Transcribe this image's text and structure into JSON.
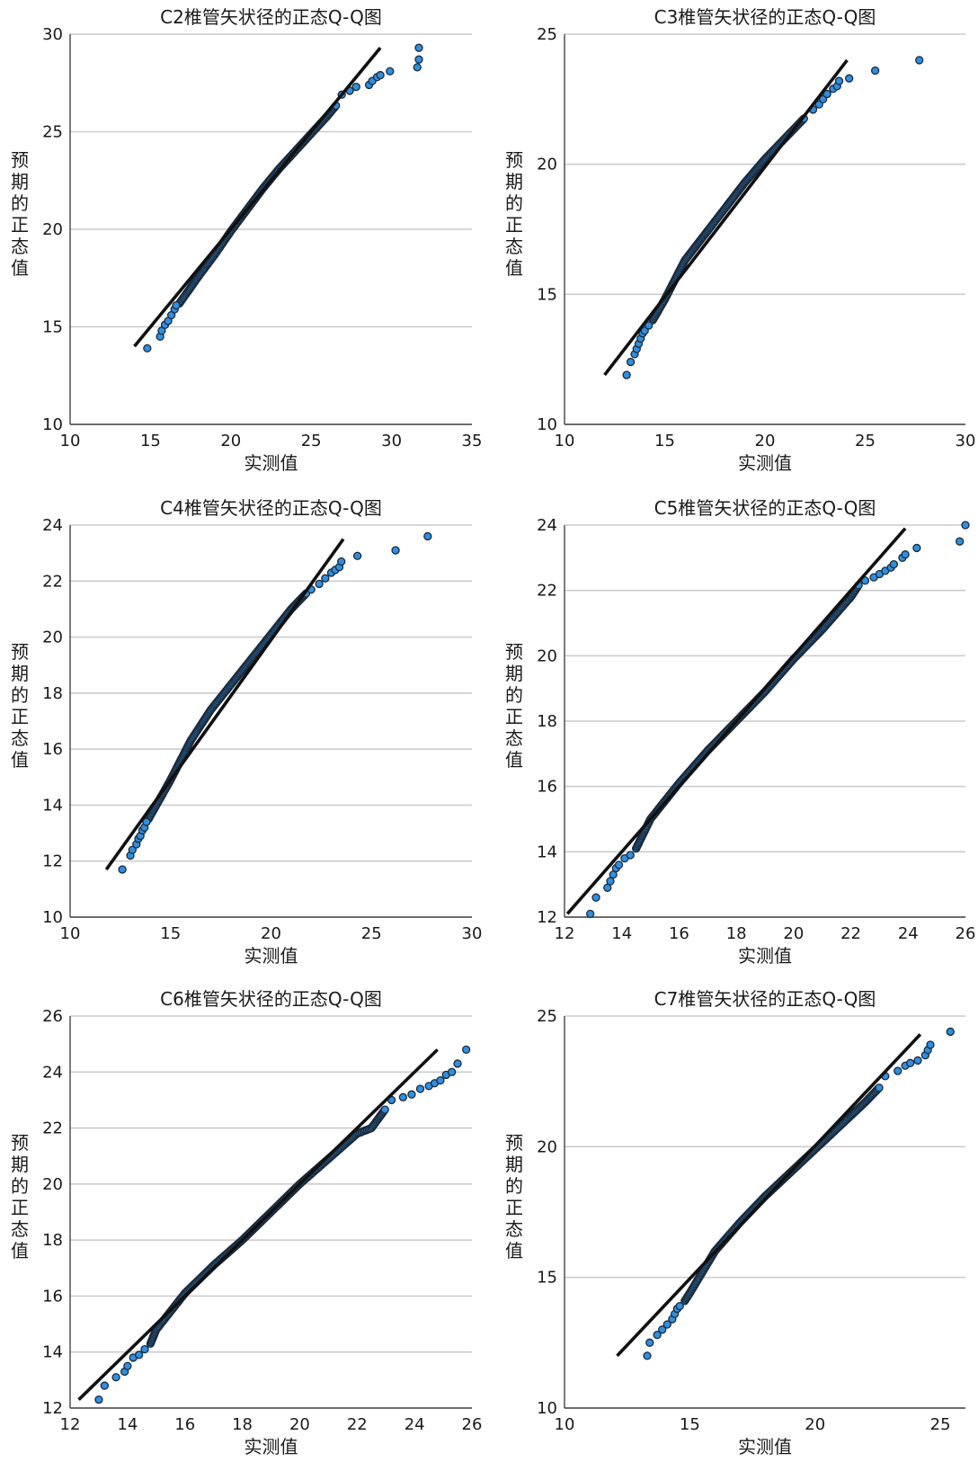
{
  "colors": {
    "point_fill": "#2f8fe0",
    "point_stroke": "#1b2a3a",
    "line": "#111111",
    "grid": "#cccccc"
  },
  "chart_data": [
    {
      "type": "scatter",
      "title": "C2椎管矢状径的正态Q-Q图",
      "xlabel": "实测值",
      "ylabel": "预期的正态值",
      "xlim": [
        10,
        35
      ],
      "ylim": [
        10,
        30
      ],
      "xticks": [
        "10",
        "15",
        "20",
        "25",
        "30",
        "35"
      ],
      "yticks": [
        "10",
        "15",
        "20",
        "25",
        "30"
      ],
      "grid": "horizontal",
      "reference_line": [
        [
          14.0,
          14.0
        ],
        [
          29.3,
          29.3
        ]
      ],
      "points": [
        [
          14.8,
          13.9
        ],
        [
          15.6,
          14.5
        ],
        [
          15.7,
          14.8
        ],
        [
          15.9,
          15.1
        ],
        [
          16.1,
          15.3
        ],
        [
          16.3,
          15.6
        ],
        [
          16.5,
          15.9
        ],
        [
          16.6,
          16.1
        ],
        [
          26.9,
          26.9
        ],
        [
          27.4,
          27.1
        ],
        [
          27.8,
          27.3
        ],
        [
          28.6,
          27.4
        ],
        [
          28.8,
          27.6
        ],
        [
          29.1,
          27.8
        ],
        [
          29.3,
          27.9
        ],
        [
          29.9,
          28.1
        ],
        [
          31.6,
          28.3
        ],
        [
          31.7,
          28.7
        ],
        [
          31.7,
          29.3
        ]
      ],
      "dense_band": [
        [
          16.8,
          16.2
        ],
        [
          18.0,
          17.6
        ],
        [
          19.0,
          18.7
        ],
        [
          20.0,
          19.9
        ],
        [
          21.0,
          21.0
        ],
        [
          22.0,
          22.1
        ],
        [
          23.0,
          23.1
        ],
        [
          24.0,
          24.0
        ],
        [
          25.0,
          24.9
        ],
        [
          26.0,
          25.8
        ],
        [
          26.6,
          26.4
        ]
      ]
    },
    {
      "type": "scatter",
      "title": "C3椎管矢状径的正态Q-Q图",
      "xlabel": "实测值",
      "ylabel": "预期的正态值",
      "xlim": [
        10,
        30
      ],
      "ylim": [
        10,
        25
      ],
      "xticks": [
        "10",
        "15",
        "20",
        "25",
        "30"
      ],
      "yticks": [
        "10",
        "15",
        "20",
        "25"
      ],
      "grid": "horizontal",
      "reference_line": [
        [
          12.0,
          11.9
        ],
        [
          24.1,
          24.0
        ]
      ],
      "points": [
        [
          13.1,
          11.9
        ],
        [
          13.3,
          12.4
        ],
        [
          13.5,
          12.7
        ],
        [
          13.6,
          12.9
        ],
        [
          13.7,
          13.1
        ],
        [
          13.8,
          13.3
        ],
        [
          13.9,
          13.5
        ],
        [
          14.0,
          13.6
        ],
        [
          14.2,
          13.8
        ],
        [
          22.4,
          22.1
        ],
        [
          22.7,
          22.3
        ],
        [
          22.9,
          22.5
        ],
        [
          23.1,
          22.7
        ],
        [
          23.4,
          22.9
        ],
        [
          23.6,
          23.0
        ],
        [
          23.7,
          23.2
        ],
        [
          24.2,
          23.3
        ],
        [
          25.5,
          23.6
        ],
        [
          27.7,
          24.0
        ]
      ],
      "dense_band": [
        [
          14.4,
          14.0
        ],
        [
          15.0,
          14.8
        ],
        [
          16.0,
          16.3
        ],
        [
          17.0,
          17.3
        ],
        [
          18.0,
          18.3
        ],
        [
          19.0,
          19.3
        ],
        [
          20.0,
          20.2
        ],
        [
          21.0,
          21.0
        ],
        [
          22.0,
          21.8
        ]
      ]
    },
    {
      "type": "scatter",
      "title": "C4椎管矢状径的正态Q-Q图",
      "xlabel": "实测值",
      "ylabel": "预期的正态值",
      "xlim": [
        10,
        30
      ],
      "ylim": [
        10,
        24
      ],
      "xticks": [
        "10",
        "15",
        "20",
        "25",
        "30"
      ],
      "yticks": [
        "10",
        "12",
        "14",
        "16",
        "18",
        "20",
        "22",
        "24"
      ],
      "grid": "horizontal",
      "reference_line": [
        [
          11.8,
          11.7
        ],
        [
          23.6,
          23.5
        ]
      ],
      "points": [
        [
          12.6,
          11.7
        ],
        [
          13.0,
          12.2
        ],
        [
          13.1,
          12.4
        ],
        [
          13.3,
          12.6
        ],
        [
          13.4,
          12.8
        ],
        [
          13.5,
          12.9
        ],
        [
          13.6,
          13.1
        ],
        [
          13.7,
          13.2
        ],
        [
          13.8,
          13.4
        ],
        [
          22.0,
          21.7
        ],
        [
          22.4,
          21.9
        ],
        [
          22.7,
          22.1
        ],
        [
          23.0,
          22.3
        ],
        [
          23.2,
          22.4
        ],
        [
          23.4,
          22.5
        ],
        [
          23.5,
          22.7
        ],
        [
          24.3,
          22.9
        ],
        [
          26.2,
          23.1
        ],
        [
          27.8,
          23.6
        ]
      ],
      "dense_band": [
        [
          13.9,
          13.5
        ],
        [
          15.0,
          14.9
        ],
        [
          16.0,
          16.3
        ],
        [
          17.0,
          17.4
        ],
        [
          18.0,
          18.3
        ],
        [
          19.0,
          19.2
        ],
        [
          20.0,
          20.1
        ],
        [
          21.0,
          21.0
        ],
        [
          21.8,
          21.6
        ]
      ]
    },
    {
      "type": "scatter",
      "title": "C5椎管矢状径的正态Q-Q图",
      "xlabel": "实测值",
      "ylabel": "预期的正态值",
      "xlim": [
        12,
        26
      ],
      "ylim": [
        12,
        24
      ],
      "xticks": [
        "12",
        "14",
        "16",
        "18",
        "20",
        "22",
        "24",
        "26"
      ],
      "yticks": [
        "12",
        "14",
        "16",
        "18",
        "20",
        "22",
        "24"
      ],
      "grid": "horizontal",
      "reference_line": [
        [
          12.1,
          12.1
        ],
        [
          23.9,
          23.9
        ]
      ],
      "points": [
        [
          12.9,
          12.1
        ],
        [
          13.1,
          12.6
        ],
        [
          13.5,
          12.9
        ],
        [
          13.6,
          13.1
        ],
        [
          13.7,
          13.3
        ],
        [
          13.8,
          13.5
        ],
        [
          13.9,
          13.6
        ],
        [
          14.1,
          13.8
        ],
        [
          14.3,
          13.9
        ],
        [
          22.5,
          22.3
        ],
        [
          22.8,
          22.4
        ],
        [
          23.0,
          22.5
        ],
        [
          23.2,
          22.6
        ],
        [
          23.4,
          22.7
        ],
        [
          23.5,
          22.8
        ],
        [
          23.8,
          23.0
        ],
        [
          23.9,
          23.1
        ],
        [
          24.3,
          23.3
        ],
        [
          25.8,
          23.5
        ],
        [
          26.0,
          24.0
        ]
      ],
      "dense_band": [
        [
          14.5,
          14.1
        ],
        [
          15.0,
          15.0
        ],
        [
          16.0,
          16.1
        ],
        [
          17.0,
          17.1
        ],
        [
          18.0,
          18.0
        ],
        [
          19.0,
          18.9
        ],
        [
          20.0,
          19.9
        ],
        [
          21.0,
          20.8
        ],
        [
          22.0,
          21.8
        ],
        [
          22.3,
          22.2
        ]
      ]
    },
    {
      "type": "scatter",
      "title": "C6椎管矢状径的正态Q-Q图",
      "xlabel": "实测值",
      "ylabel": "预期的正态值",
      "xlim": [
        12,
        26
      ],
      "ylim": [
        12,
        26
      ],
      "xticks": [
        "12",
        "14",
        "16",
        "18",
        "20",
        "22",
        "24",
        "26"
      ],
      "yticks": [
        "12",
        "14",
        "16",
        "18",
        "20",
        "22",
        "24",
        "26"
      ],
      "grid": "horizontal",
      "reference_line": [
        [
          12.3,
          12.3
        ],
        [
          24.8,
          24.8
        ]
      ],
      "points": [
        [
          13.0,
          12.3
        ],
        [
          13.2,
          12.8
        ],
        [
          13.6,
          13.1
        ],
        [
          13.9,
          13.3
        ],
        [
          14.0,
          13.5
        ],
        [
          14.2,
          13.8
        ],
        [
          14.4,
          13.9
        ],
        [
          14.6,
          14.1
        ],
        [
          23.2,
          23.0
        ],
        [
          23.6,
          23.1
        ],
        [
          23.9,
          23.2
        ],
        [
          24.2,
          23.4
        ],
        [
          24.5,
          23.5
        ],
        [
          24.7,
          23.6
        ],
        [
          24.9,
          23.7
        ],
        [
          25.1,
          23.9
        ],
        [
          25.3,
          24.0
        ],
        [
          25.5,
          24.3
        ],
        [
          25.8,
          24.8
        ]
      ],
      "dense_band": [
        [
          14.8,
          14.3
        ],
        [
          15.0,
          14.8
        ],
        [
          16.0,
          16.1
        ],
        [
          17.0,
          17.1
        ],
        [
          18.0,
          18.0
        ],
        [
          19.0,
          19.0
        ],
        [
          20.0,
          20.0
        ],
        [
          21.0,
          20.9
        ],
        [
          22.0,
          21.8
        ],
        [
          22.5,
          22.0
        ],
        [
          23.0,
          22.7
        ]
      ]
    },
    {
      "type": "scatter",
      "title": "C7椎管矢状径的正态Q-Q图",
      "xlabel": "实测值",
      "ylabel": "预期的正态值",
      "xlim": [
        10,
        26
      ],
      "ylim": [
        10,
        25
      ],
      "xticks": [
        "10",
        "15",
        "20",
        "25"
      ],
      "yticks": [
        "10",
        "15",
        "20",
        "25"
      ],
      "grid": "horizontal",
      "reference_line": [
        [
          12.1,
          12.0
        ],
        [
          24.2,
          24.3
        ]
      ],
      "points": [
        [
          13.3,
          12.0
        ],
        [
          13.4,
          12.5
        ],
        [
          13.7,
          12.8
        ],
        [
          13.9,
          13.0
        ],
        [
          14.1,
          13.2
        ],
        [
          14.3,
          13.4
        ],
        [
          14.4,
          13.6
        ],
        [
          14.5,
          13.8
        ],
        [
          14.6,
          13.9
        ],
        [
          22.8,
          22.7
        ],
        [
          23.3,
          22.9
        ],
        [
          23.6,
          23.1
        ],
        [
          23.8,
          23.2
        ],
        [
          24.1,
          23.3
        ],
        [
          24.4,
          23.5
        ],
        [
          24.5,
          23.7
        ],
        [
          24.6,
          23.9
        ],
        [
          25.4,
          24.4
        ]
      ],
      "dense_band": [
        [
          14.8,
          14.1
        ],
        [
          15.0,
          14.4
        ],
        [
          16.0,
          16.0
        ],
        [
          17.0,
          17.1
        ],
        [
          18.0,
          18.1
        ],
        [
          19.0,
          19.0
        ],
        [
          20.0,
          19.9
        ],
        [
          21.0,
          20.8
        ],
        [
          22.0,
          21.7
        ],
        [
          22.6,
          22.3
        ]
      ]
    }
  ]
}
